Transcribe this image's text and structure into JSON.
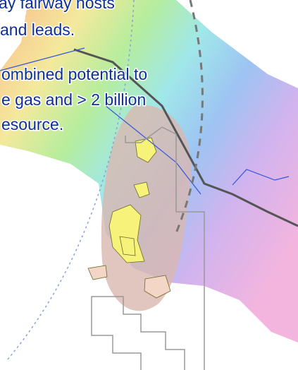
{
  "paragraphs": [
    [
      "ay fairway hosts",
      "and leads."
    ],
    [
      "ombined potential to",
      "e gas and > 2 billion",
      "esource."
    ]
  ]
}
